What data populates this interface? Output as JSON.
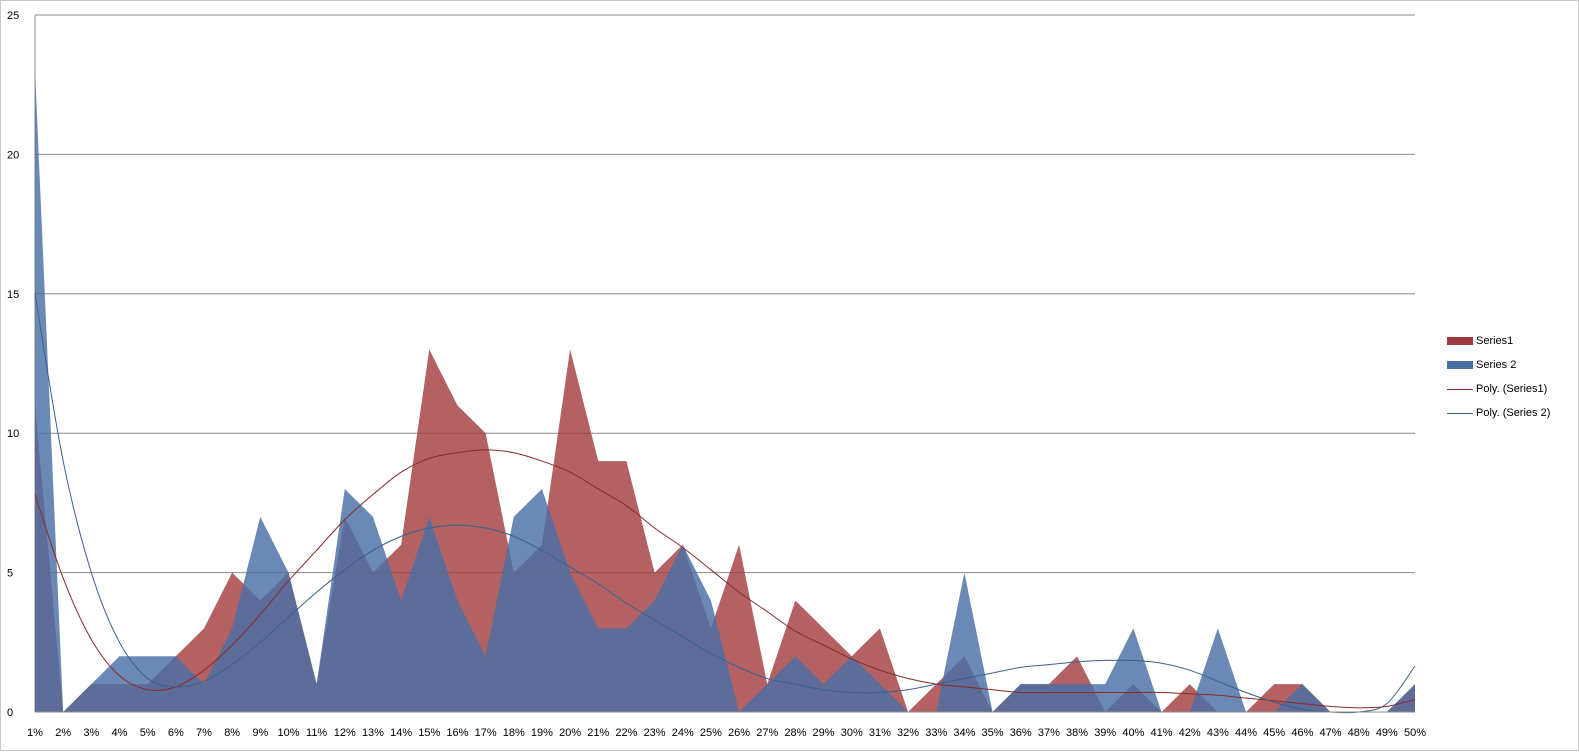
{
  "chart_data": {
    "type": "area",
    "title": "",
    "xlabel": "",
    "ylabel": "",
    "ylim": [
      0,
      25
    ],
    "yticks": [
      0,
      5,
      10,
      15,
      20,
      25
    ],
    "grid": true,
    "legend_position": "right",
    "categories": [
      "1%",
      "2%",
      "3%",
      "4%",
      "5%",
      "6%",
      "7%",
      "8%",
      "9%",
      "10%",
      "11%",
      "12%",
      "13%",
      "14%",
      "15%",
      "16%",
      "17%",
      "18%",
      "19%",
      "20%",
      "21%",
      "22%",
      "23%",
      "24%",
      "25%",
      "26%",
      "27%",
      "28%",
      "29%",
      "30%",
      "31%",
      "32%",
      "33%",
      "34%",
      "35%",
      "36%",
      "37%",
      "38%",
      "39%",
      "40%",
      "41%",
      "42%",
      "43%",
      "44%",
      "45%",
      "46%",
      "47%",
      "48%",
      "49%",
      "50%"
    ],
    "series": [
      {
        "name": "Series1",
        "color": "#A0393B",
        "values": [
          11,
          0,
          1,
          1,
          1,
          2,
          3,
          5,
          4,
          5,
          1,
          7,
          5,
          6,
          13,
          11,
          10,
          5,
          6,
          13,
          9,
          9,
          5,
          6,
          3,
          6,
          1,
          4,
          3,
          2,
          3,
          0,
          1,
          2,
          0,
          1,
          1,
          2,
          0,
          1,
          0,
          1,
          0,
          0,
          1,
          1,
          0,
          0,
          0,
          1
        ]
      },
      {
        "name": "Series 2",
        "color": "#4A6FA5",
        "values": [
          23,
          0,
          1,
          2,
          2,
          2,
          1,
          3,
          7,
          5,
          1,
          8,
          7,
          4,
          7,
          4,
          2,
          7,
          8,
          5,
          3,
          3,
          4,
          6,
          4,
          0,
          1,
          2,
          1,
          2,
          1,
          0,
          0,
          5,
          0,
          1,
          1,
          1,
          1,
          3,
          0,
          0,
          3,
          0,
          0,
          1,
          0,
          0,
          0,
          1
        ]
      }
    ],
    "trendlines": [
      {
        "name": "Poly. (Series1)",
        "type": "polynomial",
        "color": "#8B2A2A",
        "values": [
          7.8,
          4.8,
          2.6,
          1.3,
          0.8,
          0.9,
          1.5,
          2.4,
          3.5,
          4.7,
          5.8,
          6.9,
          7.8,
          8.6,
          9.1,
          9.3,
          9.4,
          9.3,
          9.0,
          8.6,
          8.0,
          7.4,
          6.6,
          5.9,
          5.1,
          4.3,
          3.6,
          2.9,
          2.4,
          1.9,
          1.5,
          1.2,
          1.0,
          0.9,
          0.8,
          0.7,
          0.7,
          0.7,
          0.7,
          0.7,
          0.7,
          0.65,
          0.6,
          0.5,
          0.4,
          0.3,
          0.2,
          0.15,
          0.2,
          0.45
        ]
      },
      {
        "name": "Poly. (Series 2)",
        "type": "polynomial",
        "color": "#3A6090",
        "values": [
          15,
          9,
          5,
          2.5,
          1.2,
          0.9,
          1.1,
          1.7,
          2.5,
          3.4,
          4.3,
          5.1,
          5.8,
          6.3,
          6.6,
          6.7,
          6.6,
          6.3,
          5.8,
          5.2,
          4.6,
          3.9,
          3.3,
          2.7,
          2.1,
          1.6,
          1.2,
          1.0,
          0.8,
          0.7,
          0.7,
          0.8,
          1.0,
          1.2,
          1.4,
          1.6,
          1.7,
          1.8,
          1.85,
          1.85,
          1.75,
          1.5,
          1.1,
          0.7,
          0.35,
          0.1,
          0,
          0,
          0.3,
          1.65
        ]
      }
    ]
  }
}
